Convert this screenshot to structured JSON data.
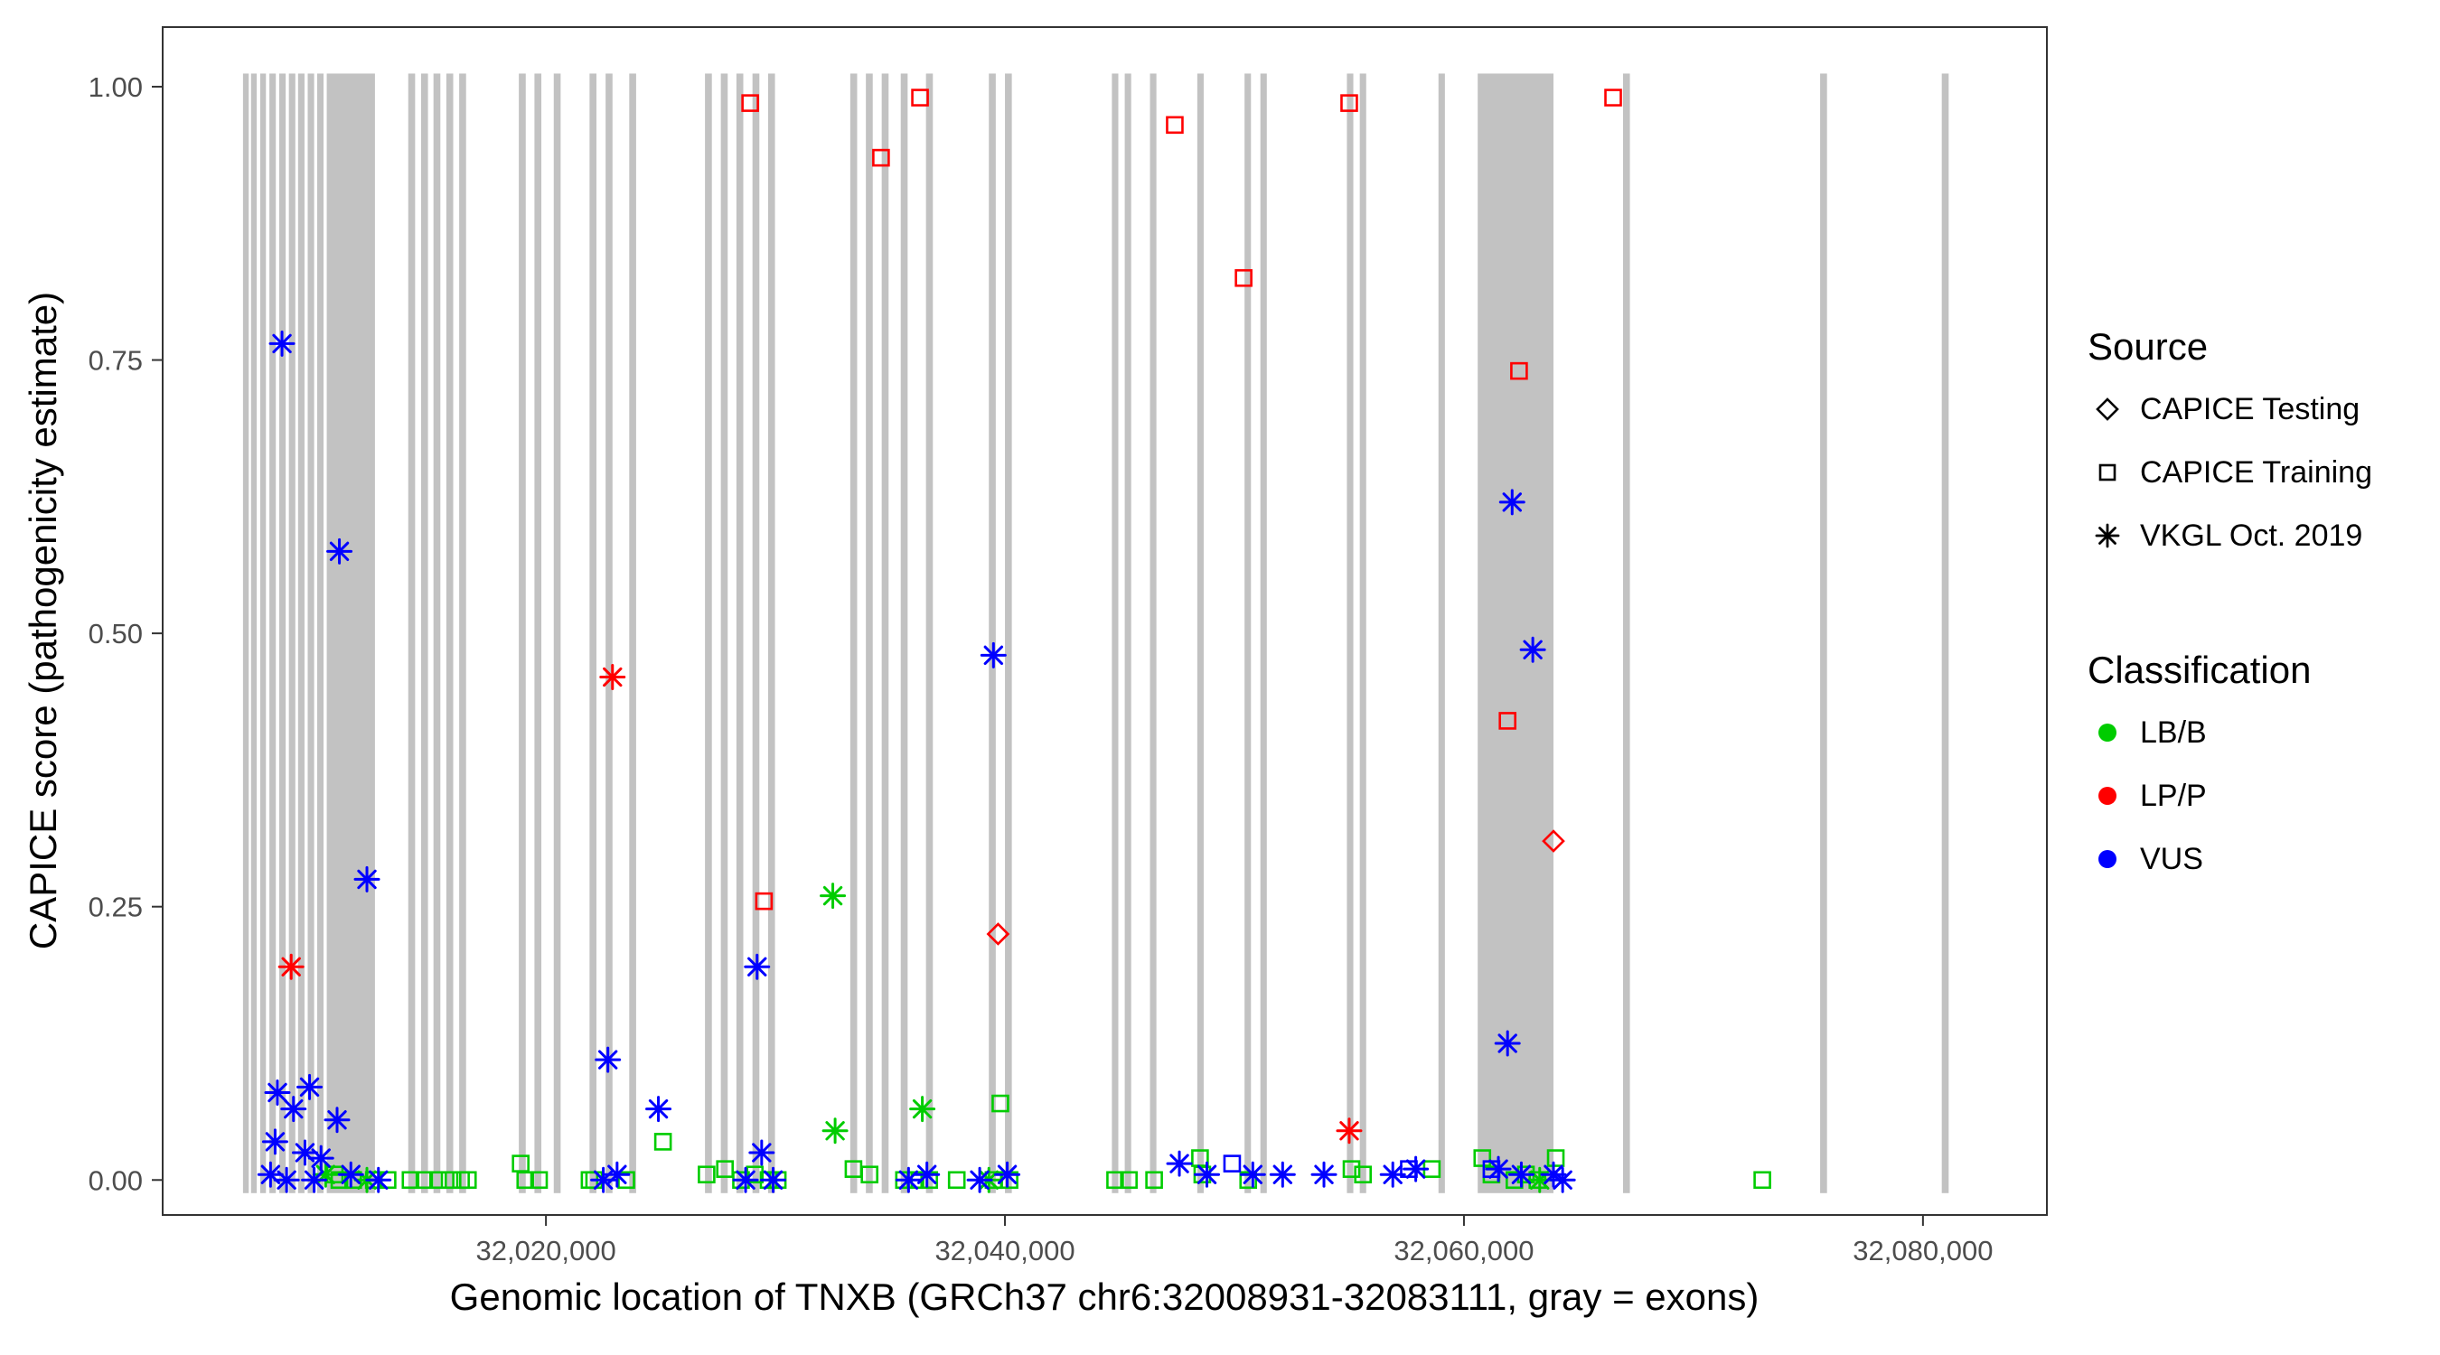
{
  "legend": {
    "source_title": "Source",
    "source_items": [
      {
        "label": "CAPICE Testing",
        "symbol": "diamond"
      },
      {
        "label": "CAPICE Training",
        "symbol": "square"
      },
      {
        "label": "VKGL Oct. 2019",
        "symbol": "asterisk"
      }
    ],
    "classification_title": "Classification",
    "classification_items": [
      {
        "label": "LB/B",
        "color": "#00CC00"
      },
      {
        "label": "LP/P",
        "color": "#FF0000"
      },
      {
        "label": "VUS",
        "color": "#0000FF"
      }
    ]
  },
  "chart_data": {
    "type": "scatter",
    "title": "",
    "xlabel": "Genomic location of TNXB (GRCh37 chr6:32008931-32083111, gray = exons)",
    "ylabel": "CAPICE score (pathogenicity estimate)",
    "gene_region": "chr6:32008931-32083111",
    "legend_position": "right",
    "grid": false,
    "x_range": [
      32003300,
      32085400
    ],
    "y_range": [
      -0.032,
      1.0545
    ],
    "x_ticks": [
      {
        "v": 32020000,
        "label": "32,020,000"
      },
      {
        "v": 32040000,
        "label": "32,040,000"
      },
      {
        "v": 32060000,
        "label": "32,060,000"
      },
      {
        "v": 32080000,
        "label": "32,080,000"
      }
    ],
    "y_ticks": [
      {
        "v": 0.0,
        "label": "0.00"
      },
      {
        "v": 0.25,
        "label": "0.25"
      },
      {
        "v": 0.5,
        "label": "0.50"
      },
      {
        "v": 0.75,
        "label": "0.75"
      },
      {
        "v": 1.0,
        "label": "1.00"
      }
    ],
    "exon_color": "#C2C2C2",
    "exon_band": [
      -0.012,
      1.012
    ],
    "exons": [
      [
        32006800,
        250
      ],
      [
        32007150,
        250
      ],
      [
        32007550,
        250
      ],
      [
        32007950,
        280
      ],
      [
        32008380,
        280
      ],
      [
        32008800,
        280
      ],
      [
        32009200,
        280
      ],
      [
        32009620,
        280
      ],
      [
        32010030,
        280
      ],
      [
        32010450,
        2100
      ],
      [
        32014000,
        300
      ],
      [
        32014560,
        300
      ],
      [
        32015100,
        300
      ],
      [
        32015660,
        300
      ],
      [
        32016220,
        300
      ],
      [
        32018820,
        300
      ],
      [
        32019500,
        300
      ],
      [
        32020340,
        300
      ],
      [
        32021900,
        300
      ],
      [
        32022600,
        300
      ],
      [
        32023630,
        300
      ],
      [
        32026930,
        300
      ],
      [
        32027620,
        300
      ],
      [
        32028300,
        300
      ],
      [
        32029000,
        300
      ],
      [
        32029680,
        300
      ],
      [
        32033260,
        300
      ],
      [
        32033940,
        300
      ],
      [
        32034630,
        300
      ],
      [
        32035460,
        300
      ],
      [
        32036560,
        300
      ],
      [
        32039300,
        300
      ],
      [
        32040000,
        300
      ],
      [
        32044660,
        280
      ],
      [
        32045220,
        280
      ],
      [
        32046320,
        280
      ],
      [
        32048380,
        280
      ],
      [
        32050440,
        280
      ],
      [
        32051130,
        280
      ],
      [
        32054900,
        280
      ],
      [
        32055460,
        280
      ],
      [
        32058890,
        280
      ],
      [
        32060600,
        3300
      ],
      [
        32066930,
        300
      ],
      [
        32075520,
        300
      ],
      [
        32080820,
        300
      ]
    ],
    "class_colors": {
      "LB/B": "#00CC00",
      "LP/P": "#FF0000",
      "VUS": "#0000FF"
    },
    "source_shapes": {
      "testing": "open-diamond",
      "training": "open-square",
      "vkgl": "asterisk"
    },
    "points": [
      [
        32028900,
        0.985,
        "training",
        "LP/P"
      ],
      [
        32034600,
        0.935,
        "training",
        "LP/P"
      ],
      [
        32036300,
        0.99,
        "training",
        "LP/P"
      ],
      [
        32047400,
        0.965,
        "training",
        "LP/P"
      ],
      [
        32050400,
        0.825,
        "training",
        "LP/P"
      ],
      [
        32055000,
        0.985,
        "training",
        "LP/P"
      ],
      [
        32062400,
        0.74,
        "training",
        "LP/P"
      ],
      [
        32066500,
        0.99,
        "training",
        "LP/P"
      ],
      [
        32061900,
        0.42,
        "training",
        "LP/P"
      ],
      [
        32029500,
        0.255,
        "training",
        "LP/P"
      ],
      [
        32039700,
        0.225,
        "testing",
        "LP/P"
      ],
      [
        32063900,
        0.31,
        "testing",
        "LP/P"
      ],
      [
        32008900,
        0.195,
        "vkgl",
        "LP/P"
      ],
      [
        32022900,
        0.46,
        "vkgl",
        "LP/P"
      ],
      [
        32055000,
        0.045,
        "vkgl",
        "LP/P"
      ],
      [
        32032500,
        0.26,
        "vkgl",
        "LB/B"
      ],
      [
        32032600,
        0.045,
        "vkgl",
        "LB/B"
      ],
      [
        32036400,
        0.065,
        "vkgl",
        "LB/B"
      ],
      [
        32039300,
        0,
        "vkgl",
        "LB/B"
      ],
      [
        32012200,
        0,
        "vkgl",
        "LB/B"
      ],
      [
        32010400,
        0.005,
        "vkgl",
        "LB/B"
      ],
      [
        32063300,
        0,
        "vkgl",
        "LB/B"
      ],
      [
        32039800,
        0.07,
        "training",
        "LB/B"
      ],
      [
        32025100,
        0.035,
        "training",
        "LB/B"
      ],
      [
        32011000,
        0,
        "training",
        "LB/B"
      ],
      [
        32011600,
        0,
        "training",
        "LB/B"
      ],
      [
        32012500,
        0,
        "training",
        "LB/B"
      ],
      [
        32013100,
        0,
        "training",
        "LB/B"
      ],
      [
        32014100,
        0,
        "training",
        "LB/B"
      ],
      [
        32014700,
        0,
        "training",
        "LB/B"
      ],
      [
        32015300,
        0,
        "training",
        "LB/B"
      ],
      [
        32015800,
        0,
        "training",
        "LB/B"
      ],
      [
        32016300,
        0,
        "training",
        "LB/B"
      ],
      [
        32016600,
        0,
        "training",
        "LB/B"
      ],
      [
        32018900,
        0.015,
        "training",
        "LB/B"
      ],
      [
        32019100,
        0,
        "training",
        "LB/B"
      ],
      [
        32019700,
        0,
        "training",
        "LB/B"
      ],
      [
        32021900,
        0,
        "training",
        "LB/B"
      ],
      [
        32022100,
        0,
        "training",
        "LB/B"
      ],
      [
        32023500,
        0,
        "training",
        "LB/B"
      ],
      [
        32027000,
        0.005,
        "training",
        "LB/B"
      ],
      [
        32027800,
        0.01,
        "training",
        "LB/B"
      ],
      [
        32028500,
        0,
        "training",
        "LB/B"
      ],
      [
        32029100,
        0.005,
        "training",
        "LB/B"
      ],
      [
        32029700,
        0,
        "training",
        "LB/B"
      ],
      [
        32030100,
        0,
        "training",
        "LB/B"
      ],
      [
        32033400,
        0.01,
        "training",
        "LB/B"
      ],
      [
        32034100,
        0.005,
        "training",
        "LB/B"
      ],
      [
        32035600,
        0,
        "training",
        "LB/B"
      ],
      [
        32036100,
        0,
        "training",
        "LB/B"
      ],
      [
        32036700,
        0,
        "training",
        "LB/B"
      ],
      [
        32037900,
        0,
        "training",
        "LB/B"
      ],
      [
        32039500,
        0,
        "training",
        "LB/B"
      ],
      [
        32040200,
        0,
        "training",
        "LB/B"
      ],
      [
        32044800,
        0,
        "training",
        "LB/B"
      ],
      [
        32045400,
        0,
        "training",
        "LB/B"
      ],
      [
        32046500,
        0,
        "training",
        "LB/B"
      ],
      [
        32048500,
        0.02,
        "training",
        "LB/B"
      ],
      [
        32048600,
        0.005,
        "training",
        "LB/B"
      ],
      [
        32050600,
        0,
        "training",
        "LB/B"
      ],
      [
        32055100,
        0.01,
        "training",
        "LB/B"
      ],
      [
        32055600,
        0.005,
        "training",
        "LB/B"
      ],
      [
        32058600,
        0.01,
        "training",
        "LB/B"
      ],
      [
        32060800,
        0.02,
        "training",
        "LB/B"
      ],
      [
        32061200,
        0.005,
        "training",
        "LB/B"
      ],
      [
        32062200,
        0,
        "training",
        "LB/B"
      ],
      [
        32062700,
        0.005,
        "training",
        "LB/B"
      ],
      [
        32063200,
        0,
        "training",
        "LB/B"
      ],
      [
        32064000,
        0.02,
        "training",
        "LB/B"
      ],
      [
        32073000,
        0,
        "training",
        "LB/B"
      ],
      [
        32010800,
        0.005,
        "training",
        "LB/B"
      ],
      [
        32008500,
        0.765,
        "vkgl",
        "VUS"
      ],
      [
        32011000,
        0.575,
        "vkgl",
        "VUS"
      ],
      [
        32012200,
        0.275,
        "vkgl",
        "VUS"
      ],
      [
        32008300,
        0.08,
        "vkgl",
        "VUS"
      ],
      [
        32009700,
        0.085,
        "vkgl",
        "VUS"
      ],
      [
        32009000,
        0.065,
        "vkgl",
        "VUS"
      ],
      [
        32010900,
        0.055,
        "vkgl",
        "VUS"
      ],
      [
        32008200,
        0.035,
        "vkgl",
        "VUS"
      ],
      [
        32009500,
        0.025,
        "vkgl",
        "VUS"
      ],
      [
        32010200,
        0.02,
        "vkgl",
        "VUS"
      ],
      [
        32008000,
        0.005,
        "vkgl",
        "VUS"
      ],
      [
        32008700,
        0,
        "vkgl",
        "VUS"
      ],
      [
        32009900,
        0,
        "vkgl",
        "VUS"
      ],
      [
        32011500,
        0.005,
        "vkgl",
        "VUS"
      ],
      [
        32012700,
        0,
        "vkgl",
        "VUS"
      ],
      [
        32022700,
        0.11,
        "vkgl",
        "VUS"
      ],
      [
        32024900,
        0.065,
        "vkgl",
        "VUS"
      ],
      [
        32022500,
        0,
        "vkgl",
        "VUS"
      ],
      [
        32023100,
        0.005,
        "vkgl",
        "VUS"
      ],
      [
        32029200,
        0.195,
        "vkgl",
        "VUS"
      ],
      [
        32029400,
        0.025,
        "vkgl",
        "VUS"
      ],
      [
        32028700,
        0,
        "vkgl",
        "VUS"
      ],
      [
        32029900,
        0,
        "vkgl",
        "VUS"
      ],
      [
        32039500,
        0.48,
        "vkgl",
        "VUS"
      ],
      [
        32038900,
        0,
        "vkgl",
        "VUS"
      ],
      [
        32040100,
        0.005,
        "vkgl",
        "VUS"
      ],
      [
        32035800,
        0,
        "vkgl",
        "VUS"
      ],
      [
        32036600,
        0.005,
        "vkgl",
        "VUS"
      ],
      [
        32047600,
        0.015,
        "vkgl",
        "VUS"
      ],
      [
        32048800,
        0.005,
        "vkgl",
        "VUS"
      ],
      [
        32050800,
        0.005,
        "vkgl",
        "VUS"
      ],
      [
        32052100,
        0.005,
        "vkgl",
        "VUS"
      ],
      [
        32053900,
        0.005,
        "vkgl",
        "VUS"
      ],
      [
        32056900,
        0.005,
        "vkgl",
        "VUS"
      ],
      [
        32057900,
        0.01,
        "vkgl",
        "VUS"
      ],
      [
        32062100,
        0.62,
        "vkgl",
        "VUS"
      ],
      [
        32063000,
        0.485,
        "vkgl",
        "VUS"
      ],
      [
        32061900,
        0.125,
        "vkgl",
        "VUS"
      ],
      [
        32061500,
        0.01,
        "vkgl",
        "VUS"
      ],
      [
        32062500,
        0.005,
        "vkgl",
        "VUS"
      ],
      [
        32063900,
        0.005,
        "vkgl",
        "VUS"
      ],
      [
        32064300,
        0,
        "vkgl",
        "VUS"
      ],
      [
        32049900,
        0.015,
        "training",
        "VUS"
      ],
      [
        32057600,
        0.01,
        "training",
        "VUS"
      ],
      [
        32061200,
        0.01,
        "training",
        "VUS"
      ]
    ]
  }
}
